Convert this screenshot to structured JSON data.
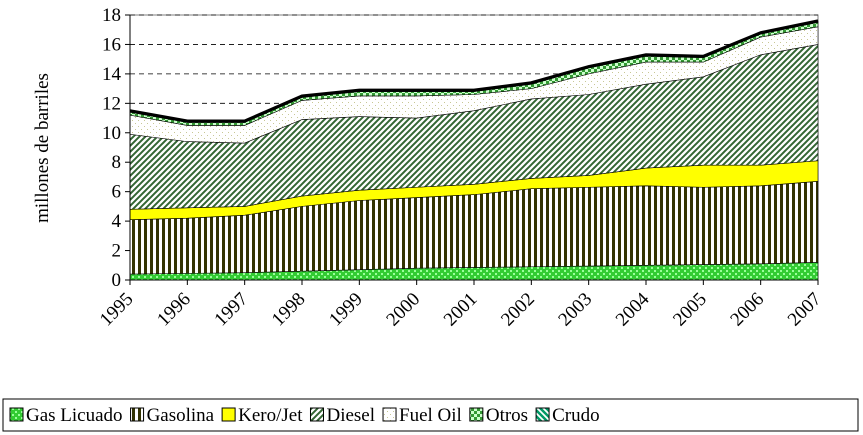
{
  "chart_data": {
    "type": "stacked_area",
    "y_label": "millones de barriles",
    "categories": [
      "1995",
      "1996",
      "1997",
      "1998",
      "1999",
      "2000",
      "2001",
      "2002",
      "2003",
      "2004",
      "2005",
      "2006",
      "2007"
    ],
    "ylim": [
      0,
      18
    ],
    "yticks": [
      0,
      2,
      4,
      6,
      8,
      10,
      12,
      14,
      16,
      18
    ],
    "grid": true,
    "series": [
      {
        "name": "Gas Licuado",
        "color": "#33cc33",
        "values": [
          0.4,
          0.45,
          0.5,
          0.6,
          0.7,
          0.8,
          0.85,
          0.9,
          0.95,
          1.0,
          1.05,
          1.1,
          1.2
        ]
      },
      {
        "name": "Gasolina",
        "color": "#333300",
        "values": [
          3.7,
          3.75,
          3.9,
          4.4,
          4.7,
          4.8,
          4.95,
          5.3,
          5.35,
          5.4,
          5.25,
          5.3,
          5.5
        ]
      },
      {
        "name": "Kero/Jet",
        "color": "#ffff00",
        "values": [
          0.7,
          0.7,
          0.6,
          0.7,
          0.7,
          0.7,
          0.7,
          0.7,
          0.8,
          1.2,
          1.5,
          1.4,
          1.4
        ]
      },
      {
        "name": "Diesel",
        "color": "#336633",
        "values": [
          5.1,
          4.5,
          4.3,
          5.2,
          5.0,
          4.7,
          5.0,
          5.4,
          5.5,
          5.7,
          6.0,
          7.5,
          7.9
        ]
      },
      {
        "name": "Fuel Oil",
        "color": "#c8c896",
        "values": [
          1.3,
          1.1,
          1.2,
          1.3,
          1.4,
          1.5,
          1.1,
          0.7,
          1.4,
          1.5,
          1.0,
          1.2,
          1.2
        ]
      },
      {
        "name": "Otros",
        "color": "#339933",
        "values": [
          0.2,
          0.2,
          0.2,
          0.2,
          0.3,
          0.3,
          0.2,
          0.3,
          0.4,
          0.4,
          0.3,
          0.2,
          0.3
        ]
      },
      {
        "name": "Crudo",
        "color": "#009966",
        "values": [
          0.1,
          0.1,
          0.1,
          0.1,
          0.1,
          0.1,
          0.1,
          0.1,
          0.1,
          0.1,
          0.1,
          0.1,
          0.1
        ]
      }
    ]
  }
}
